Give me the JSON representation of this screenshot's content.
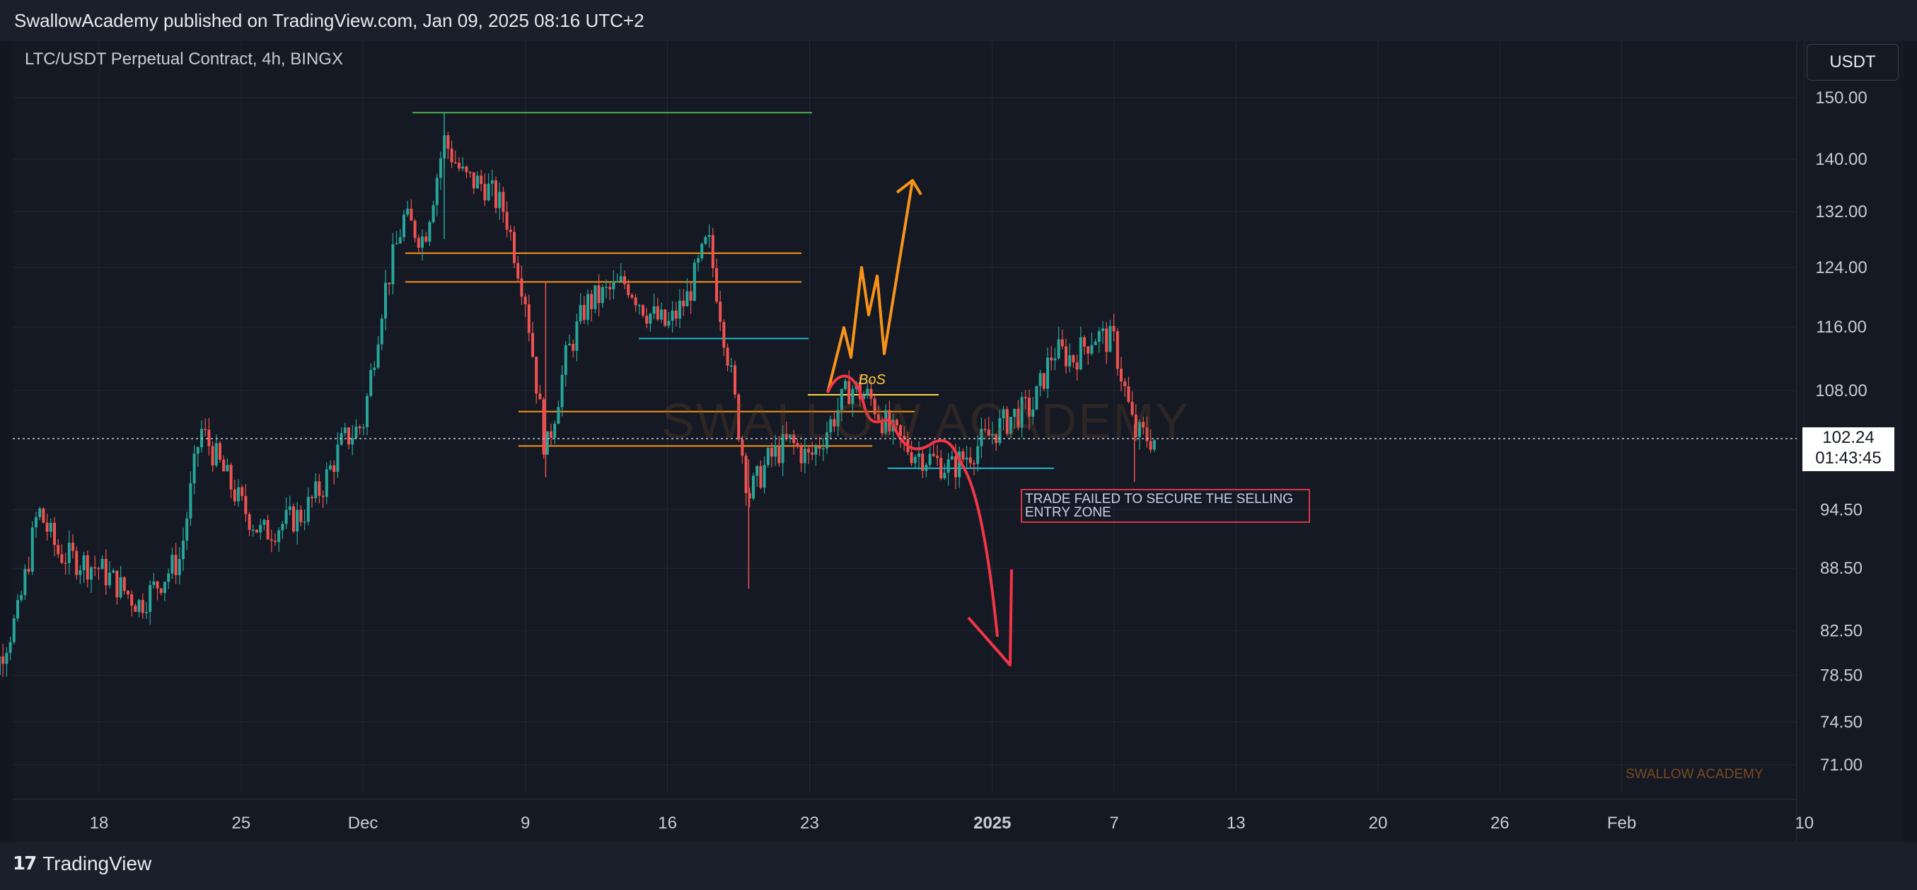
{
  "header": {
    "published_text": "SwallowAcademy published on TradingView.com, Jan 09, 2025 08:16 UTC+2"
  },
  "chart_legend": "LTC/USDT Perpetual Contract, 4h, BINGX",
  "currency_button": "USDT",
  "current_price": {
    "price": "102.24",
    "countdown": "01:43:45"
  },
  "annotation_text": "TRADE FAILED TO SECURE THE SELLING ENTRY ZONE",
  "bos_label": "BoS",
  "watermark_brand": "SWALLOW ACADEMY",
  "watermark_big": "SWALLOW ACADEMY",
  "footer": {
    "logo_mark": "17",
    "logo_text": "TradingView"
  },
  "colors": {
    "background": "#131722",
    "up_candle": "#26a69a",
    "down_candle": "#ef5350",
    "orange": "#f7931a",
    "red_drawing": "#f23645",
    "cyan_line": "#22b8cf",
    "yellow_line": "#ffd740",
    "green_line": "#4caf50"
  },
  "chart_data": {
    "type": "candlestick",
    "title": "LTC/USDT Perpetual Contract, 4h, BINGX",
    "y_scale": "log",
    "y_ticks": [
      "150.00",
      "140.00",
      "132.00",
      "124.00",
      "116.00",
      "108.00",
      "94.50",
      "88.50",
      "82.50",
      "78.50",
      "74.50",
      "71.00"
    ],
    "x_ticks": [
      "18",
      "25",
      "Dec",
      "9",
      "16",
      "23",
      "2025",
      "7",
      "13",
      "20",
      "26",
      "Feb",
      "10"
    ],
    "price_path": [
      {
        "date": "2024-11-12",
        "close": 75.5
      },
      {
        "date": "2024-11-14",
        "close": 84.0
      },
      {
        "date": "2024-11-15",
        "close": 94.5
      },
      {
        "date": "2024-11-16",
        "close": 90.0
      },
      {
        "date": "2024-11-18",
        "close": 88.5
      },
      {
        "date": "2024-11-20",
        "close": 85.0
      },
      {
        "date": "2024-11-22",
        "close": 89.5
      },
      {
        "date": "2024-11-23",
        "close": 103.5
      },
      {
        "date": "2024-11-25",
        "close": 95.0
      },
      {
        "date": "2024-11-26",
        "close": 92.0
      },
      {
        "date": "2024-11-28",
        "close": 94.0
      },
      {
        "date": "2024-11-29",
        "close": 97.0
      },
      {
        "date": "2024-11-30",
        "close": 102.0
      },
      {
        "date": "2024-12-01",
        "close": 104.0
      },
      {
        "date": "2024-12-02",
        "close": 120.0
      },
      {
        "date": "2024-12-03",
        "close": 131.0
      },
      {
        "date": "2024-12-04",
        "close": 128.0
      },
      {
        "date": "2024-12-05",
        "close": 143.0
      },
      {
        "date": "2024-12-06",
        "close": 137.0
      },
      {
        "date": "2024-12-07",
        "close": 136.0
      },
      {
        "date": "2024-12-08",
        "close": 132.0
      },
      {
        "date": "2024-12-09",
        "close": 120.0
      },
      {
        "date": "2024-12-10",
        "close": 100.5
      },
      {
        "date": "2024-12-11",
        "close": 112.0
      },
      {
        "date": "2024-12-12",
        "close": 119.0
      },
      {
        "date": "2024-12-14",
        "close": 122.0
      },
      {
        "date": "2024-12-15",
        "close": 118.0
      },
      {
        "date": "2024-12-16",
        "close": 116.0
      },
      {
        "date": "2024-12-17",
        "close": 120.0
      },
      {
        "date": "2024-12-18",
        "close": 128.0
      },
      {
        "date": "2024-12-19",
        "close": 112.0
      },
      {
        "date": "2024-12-20",
        "close": 96.0
      },
      {
        "date": "2024-12-21",
        "close": 100.0
      },
      {
        "date": "2024-12-22",
        "close": 102.0
      },
      {
        "date": "2024-12-23",
        "close": 100.0
      },
      {
        "date": "2024-12-24",
        "close": 104.0
      },
      {
        "date": "2024-12-25",
        "close": 108.5
      },
      {
        "date": "2024-12-26",
        "close": 107.0
      },
      {
        "date": "2024-12-27",
        "close": 103.0
      },
      {
        "date": "2024-12-28",
        "close": 101.0
      },
      {
        "date": "2024-12-29",
        "close": 100.0
      },
      {
        "date": "2024-12-30",
        "close": 99.0
      },
      {
        "date": "2024-12-31",
        "close": 101.0
      },
      {
        "date": "2025-01-01",
        "close": 103.0
      },
      {
        "date": "2025-01-02",
        "close": 105.0
      },
      {
        "date": "2025-01-03",
        "close": 106.0
      },
      {
        "date": "2025-01-04",
        "close": 113.0
      },
      {
        "date": "2025-01-05",
        "close": 112.0
      },
      {
        "date": "2025-01-06",
        "close": 115.0
      },
      {
        "date": "2025-01-07",
        "close": 114.0
      },
      {
        "date": "2025-01-08",
        "close": 103.0
      },
      {
        "date": "2025-01-09",
        "close": 102.24
      }
    ],
    "current_price": 102.24,
    "horizontal_levels": [
      {
        "price": 147.5,
        "color": "green"
      },
      {
        "price": 126.0,
        "color": "orange"
      },
      {
        "price": 122.0,
        "color": "orange"
      },
      {
        "price": 114.5,
        "color": "cyan"
      },
      {
        "price": 107.5,
        "color": "yellow",
        "label": "BoS"
      },
      {
        "price": 105.5,
        "color": "orange"
      },
      {
        "price": 101.5,
        "color": "orange"
      },
      {
        "price": 99.0,
        "color": "cyan"
      }
    ]
  }
}
